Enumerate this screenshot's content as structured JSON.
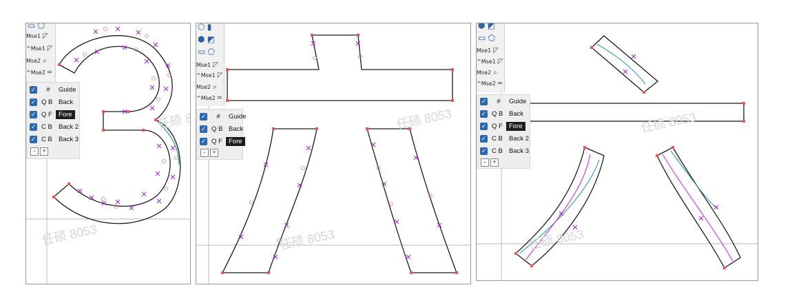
{
  "panels": [
    {
      "tools": {
        "rows": [
          {
            "label": "Mse1",
            "icon": "◸"
          },
          {
            "label": "^Mse1",
            "icon": "◸"
          },
          {
            "label": "Mse2",
            "icon": "⌕"
          },
          {
            "label": "^Mse2",
            "icon": "═"
          }
        ]
      },
      "layers": [
        {
          "checked": true,
          "type": "#",
          "name": "Guide",
          "active": false
        },
        {
          "checked": true,
          "type": "Q B",
          "name": "Back",
          "active": false
        },
        {
          "checked": true,
          "type": "Q F",
          "name": "Fore",
          "active": true
        },
        {
          "checked": true,
          "type": "C B",
          "name": "Back 2",
          "active": false
        },
        {
          "checked": true,
          "type": "C B",
          "name": "Back 3",
          "active": false
        }
      ],
      "buttons": {
        "minus": "-",
        "plus": "+"
      }
    },
    {
      "tools": {
        "rows": [
          {
            "label": "Mse1",
            "icon": "◸"
          },
          {
            "label": "^Mse1",
            "icon": "◸"
          },
          {
            "label": "Mse2",
            "icon": "⌕"
          },
          {
            "label": "^Mse2",
            "icon": "═"
          }
        ]
      },
      "layers": [
        {
          "checked": true,
          "type": "#",
          "name": "Guide",
          "active": false
        },
        {
          "checked": true,
          "type": "Q B",
          "name": "Back",
          "active": false
        },
        {
          "checked": true,
          "type": "Q F",
          "name": "Fore",
          "active": true
        }
      ],
      "buttons": {
        "minus": "-",
        "plus": "+"
      }
    },
    {
      "tools": {
        "rows": [
          {
            "label": "Mse1",
            "icon": "◸"
          },
          {
            "label": "^Mse1",
            "icon": "◸"
          },
          {
            "label": "Mse2",
            "icon": "⌕"
          },
          {
            "label": "^Mse2",
            "icon": "═"
          }
        ]
      },
      "layers": [
        {
          "checked": true,
          "type": "#",
          "name": "Guide",
          "active": false
        },
        {
          "checked": true,
          "type": "Q B",
          "name": "Back",
          "active": false
        },
        {
          "checked": true,
          "type": "Q F",
          "name": "Fore",
          "active": true
        },
        {
          "checked": true,
          "type": "C B",
          "name": "Back 2",
          "active": false
        },
        {
          "checked": true,
          "type": "C B",
          "name": "Back 3",
          "active": false
        }
      ],
      "buttons": {
        "minus": "-",
        "plus": "+"
      }
    }
  ],
  "watermark": "任硕 8053",
  "colors": {
    "outline": "#1a1a1a",
    "guide": "#b8b8b8",
    "hint_x": "#a020d0",
    "off_curve": "#e08080",
    "point": "#ff5050",
    "accent_line": "#2a9ab0",
    "magenta_line": "#d030d0"
  }
}
